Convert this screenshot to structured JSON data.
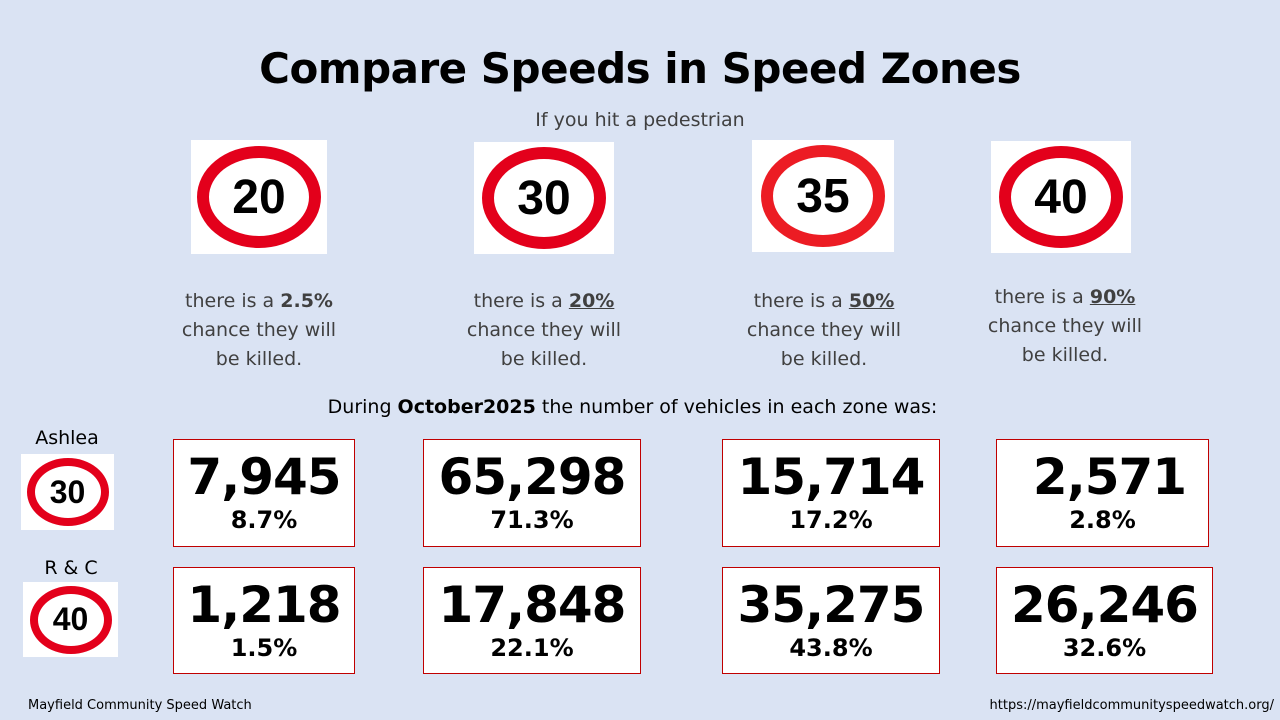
{
  "title": "Compare Speeds in Speed Zones",
  "subtitle": "If you hit a pedestrian",
  "zones": [
    {
      "speed": "20",
      "pre": "there is a ",
      "pct": "2.5%",
      "post_line1": "chance they will",
      "post_line2": "be killed."
    },
    {
      "speed": "30",
      "pre": "there is a ",
      "pct": "20%",
      "post_line1": "chance they will",
      "post_line2": "be killed."
    },
    {
      "speed": "35",
      "pre": "there is a ",
      "pct": "50%",
      "post_line1": "chance they will",
      "post_line2": "be killed."
    },
    {
      "speed": "40",
      "pre": "there is a ",
      "pct": "90%",
      "post_line1": "chance they will",
      "post_line2": "be killed."
    }
  ],
  "during": {
    "pre": "During ",
    "month": "October2025",
    "post": " the number of vehicles in each zone was:"
  },
  "rows": [
    {
      "label": "Ashlea",
      "speed": "30",
      "cells": [
        {
          "count": "7,945",
          "pct": "8.7%"
        },
        {
          "count": "65,298",
          "pct": "71.3%"
        },
        {
          "count": "15,714",
          "pct": "17.2%"
        },
        {
          "count": "2,571",
          "pct": "2.8%"
        }
      ]
    },
    {
      "label": "R & C",
      "speed": "40",
      "cells": [
        {
          "count": "1,218",
          "pct": "1.5%"
        },
        {
          "count": "17,848",
          "pct": "22.1%"
        },
        {
          "count": "35,275",
          "pct": "43.8%"
        },
        {
          "count": "26,246",
          "pct": "32.6%"
        }
      ]
    }
  ],
  "footer": {
    "left": "Mayfield Community Speed Watch",
    "right": "https://mayfieldcommunityspeedwatch.org/"
  }
}
